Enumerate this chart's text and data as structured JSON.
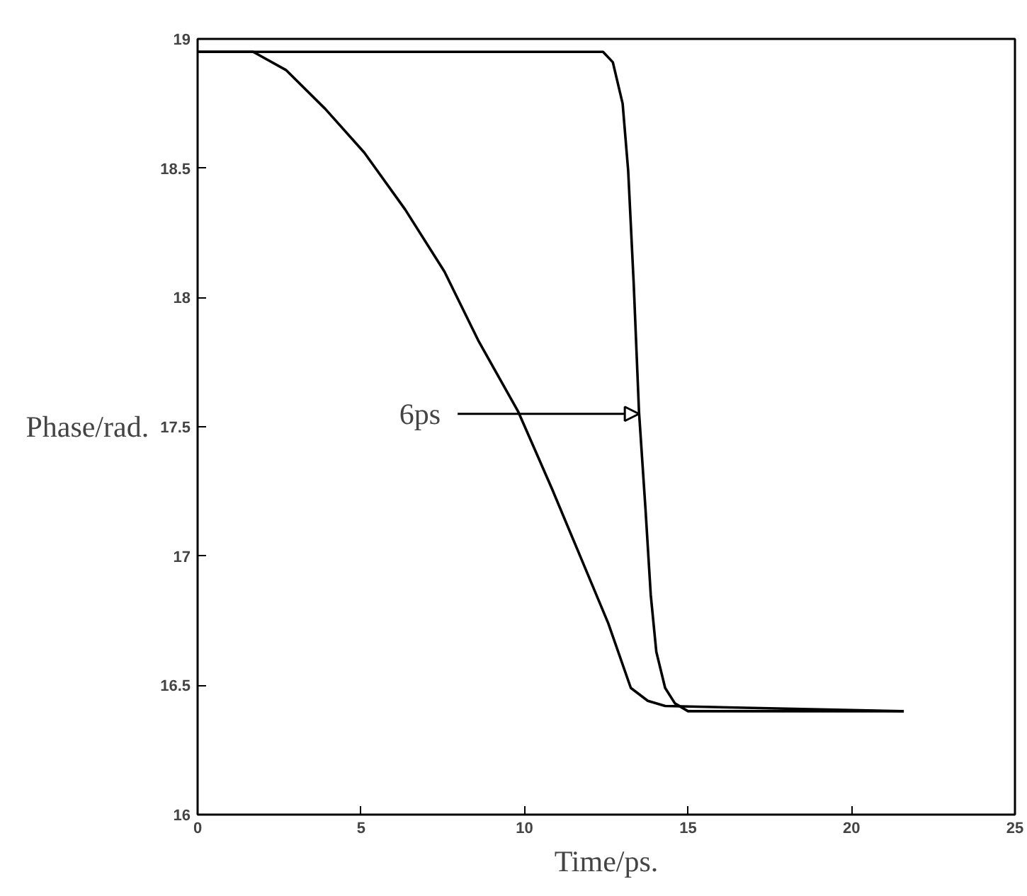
{
  "chart_data": {
    "type": "line",
    "xlabel": "Time/ps.",
    "ylabel": "Phase/rad.",
    "xlim": [
      0,
      25
    ],
    "xticks": [
      0,
      5,
      10,
      15,
      20,
      25
    ],
    "ylim": [
      16,
      19
    ],
    "yticks": [
      16,
      16.5,
      17,
      17.5,
      18,
      18.5,
      19
    ],
    "line_style": "solid",
    "marker": "none",
    "series": [
      {
        "color": "#000000",
        "x": [
          0,
          1.7,
          2.7,
          3.9,
          5.1,
          6.35,
          7.55,
          8.6,
          9.8,
          10.84,
          11.7,
          12.56,
          13.25,
          13.77,
          14.3,
          21.6
        ],
        "values": [
          18.95,
          18.95,
          18.88,
          18.73,
          18.56,
          18.34,
          18.1,
          17.83,
          17.56,
          17.26,
          17.0,
          16.74,
          16.49,
          16.44,
          16.42,
          16.4
        ]
      },
      {
        "color": "#000000",
        "x": [
          0,
          12.4,
          12.7,
          13.0,
          13.17,
          13.34,
          13.5,
          13.7,
          13.86,
          14.03,
          14.3,
          14.6,
          15.0,
          21.6
        ],
        "values": [
          18.95,
          18.95,
          18.91,
          18.75,
          18.49,
          18.05,
          17.56,
          17.18,
          16.85,
          16.63,
          16.49,
          16.43,
          16.4,
          16.4
        ]
      }
    ],
    "annotations": [
      {
        "text": "6ps",
        "x": 13.5,
        "y": 17.55
      }
    ]
  }
}
